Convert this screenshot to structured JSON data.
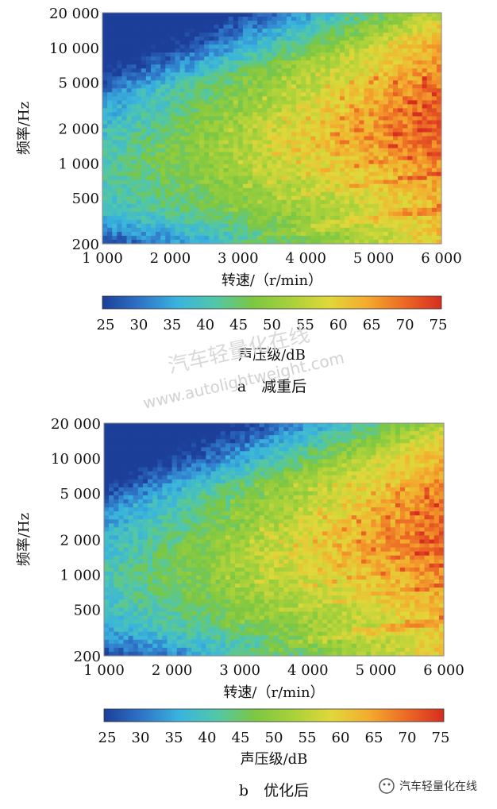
{
  "chart_data": [
    {
      "type": "heatmap",
      "caption_letter": "a",
      "caption_text": "减重后",
      "xlabel": "转速/（r/min）",
      "ylabel": "频率/Hz",
      "xlim": [
        1000,
        6000
      ],
      "ylim": [
        200,
        20000
      ],
      "yscale": "log",
      "x_ticks": [
        {
          "value": 1000,
          "label": "1 000"
        },
        {
          "value": 2000,
          "label": "2 000"
        },
        {
          "value": 3000,
          "label": "3 000"
        },
        {
          "value": 4000,
          "label": "4 000"
        },
        {
          "value": 5000,
          "label": "5 000"
        },
        {
          "value": 6000,
          "label": "6 000"
        }
      ],
      "y_ticks": [
        {
          "value": 20000,
          "label": "20 000"
        },
        {
          "value": 10000,
          "label": "10 000"
        },
        {
          "value": 5000,
          "label": "5 000"
        },
        {
          "value": 2000,
          "label": "2 000"
        },
        {
          "value": 1000,
          "label": "1 000"
        },
        {
          "value": 500,
          "label": "500"
        },
        {
          "value": 200,
          "label": "200"
        }
      ],
      "colorbar": {
        "label": "声压级/dB",
        "range": [
          25,
          75
        ],
        "ticks": [
          "25",
          "30",
          "35",
          "40",
          "45",
          "50",
          "55",
          "60",
          "65",
          "70",
          "75"
        ]
      }
    },
    {
      "type": "heatmap",
      "caption_letter": "b",
      "caption_text": "优化后",
      "xlabel": "转速/（r/min）",
      "ylabel": "频率/Hz",
      "xlim": [
        1000,
        6000
      ],
      "ylim": [
        200,
        20000
      ],
      "yscale": "log",
      "x_ticks": [
        {
          "value": 1000,
          "label": "1 000"
        },
        {
          "value": 2000,
          "label": "2 000"
        },
        {
          "value": 3000,
          "label": "3 000"
        },
        {
          "value": 4000,
          "label": "4 000"
        },
        {
          "value": 5000,
          "label": "5 000"
        },
        {
          "value": 6000,
          "label": "6 000"
        }
      ],
      "y_ticks": [
        {
          "value": 20000,
          "label": "20 000"
        },
        {
          "value": 10000,
          "label": "10 000"
        },
        {
          "value": 5000,
          "label": "5 000"
        },
        {
          "value": 2000,
          "label": "2 000"
        },
        {
          "value": 1000,
          "label": "1 000"
        },
        {
          "value": 500,
          "label": "500"
        },
        {
          "value": 200,
          "label": "200"
        }
      ],
      "colorbar": {
        "label": "声压级/dB",
        "range": [
          25,
          75
        ],
        "ticks": [
          "25",
          "30",
          "35",
          "40",
          "45",
          "50",
          "55",
          "60",
          "65",
          "70",
          "75"
        ]
      }
    }
  ],
  "colormap": [
    "#1c3f9a",
    "#2f74c8",
    "#39b4de",
    "#52c7a8",
    "#7cc742",
    "#a8d13a",
    "#e0d83a",
    "#f4ac2e",
    "#ec6a25",
    "#d72d20"
  ],
  "watermark": {
    "brand": "汽车轻量化在线",
    "url": "www.autolightweight.com"
  }
}
